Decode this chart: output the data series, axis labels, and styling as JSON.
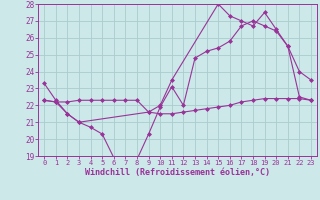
{
  "xlabel": "Windchill (Refroidissement éolien,°C)",
  "bg_color": "#cce8e8",
  "line_color": "#993399",
  "grid_color": "#aacccc",
  "xlim": [
    -0.5,
    23.5
  ],
  "ylim": [
    19,
    28
  ],
  "xticks": [
    0,
    1,
    2,
    3,
    4,
    5,
    6,
    7,
    8,
    9,
    10,
    11,
    12,
    13,
    14,
    15,
    16,
    17,
    18,
    19,
    20,
    21,
    22,
    23
  ],
  "yticks": [
    19,
    20,
    21,
    22,
    23,
    24,
    25,
    26,
    27,
    28
  ],
  "line1_x": [
    0,
    1,
    2,
    3,
    4,
    5,
    6,
    7,
    8,
    9,
    10,
    11,
    12,
    13,
    14,
    15,
    16,
    17,
    18,
    19,
    20,
    21,
    22,
    23
  ],
  "line1_y": [
    23.3,
    22.3,
    21.5,
    21.0,
    20.7,
    20.3,
    18.9,
    18.8,
    18.8,
    20.3,
    21.9,
    23.1,
    22.0,
    24.8,
    25.2,
    25.4,
    25.8,
    26.7,
    27.0,
    26.7,
    26.4,
    25.5,
    24.0,
    23.5
  ],
  "line2_x": [
    0,
    1,
    2,
    3,
    4,
    5,
    6,
    7,
    8,
    9,
    10,
    11,
    12,
    13,
    14,
    15,
    16,
    17,
    18,
    19,
    20,
    21,
    22,
    23
  ],
  "line2_y": [
    22.3,
    22.2,
    22.2,
    22.3,
    22.3,
    22.3,
    22.3,
    22.3,
    22.3,
    21.6,
    21.5,
    21.5,
    21.6,
    21.7,
    21.8,
    21.9,
    22.0,
    22.2,
    22.3,
    22.4,
    22.4,
    22.4,
    22.4,
    22.3
  ],
  "line3_x": [
    0,
    1,
    2,
    3,
    9,
    10,
    11,
    15,
    16,
    17,
    18,
    19,
    20,
    21,
    22,
    23
  ],
  "line3_y": [
    22.3,
    22.2,
    21.5,
    21.0,
    21.6,
    22.0,
    23.5,
    28.0,
    27.3,
    27.0,
    26.7,
    27.5,
    26.5,
    25.5,
    22.5,
    22.3
  ]
}
